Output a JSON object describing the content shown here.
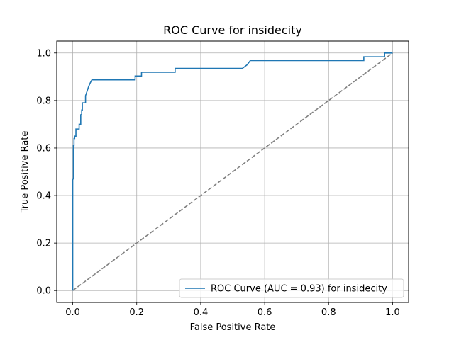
{
  "chart_data": {
    "type": "line",
    "title": "ROC Curve for insidecity",
    "xlabel": "False Positive Rate",
    "ylabel": "True Positive Rate",
    "xlim": [
      -0.05,
      1.05
    ],
    "ylim": [
      -0.05,
      1.05
    ],
    "xticks": [
      "0.0",
      "0.2",
      "0.4",
      "0.6",
      "0.8",
      "1.0"
    ],
    "yticks": [
      "0.0",
      "0.2",
      "0.4",
      "0.6",
      "0.8",
      "1.0"
    ],
    "grid": true,
    "legend_position": "lower-right",
    "series": [
      {
        "name": "ROC Curve (AUC = 0.93) for insidecity",
        "color": "#1f77b4",
        "style": "solid",
        "x": [
          0.0,
          0.0,
          0.002,
          0.002,
          0.004,
          0.004,
          0.006,
          0.006,
          0.01,
          0.01,
          0.02,
          0.02,
          0.025,
          0.025,
          0.028,
          0.028,
          0.03,
          0.03,
          0.04,
          0.04,
          0.045,
          0.05,
          0.055,
          0.06,
          0.195,
          0.195,
          0.215,
          0.215,
          0.32,
          0.32,
          0.53,
          0.545,
          0.555,
          0.555,
          0.91,
          0.91,
          0.975,
          0.975,
          1.0
        ],
        "y": [
          0.0,
          0.47,
          0.47,
          0.61,
          0.61,
          0.64,
          0.64,
          0.65,
          0.65,
          0.68,
          0.68,
          0.7,
          0.7,
          0.74,
          0.74,
          0.76,
          0.76,
          0.79,
          0.79,
          0.82,
          0.84,
          0.86,
          0.875,
          0.887,
          0.887,
          0.903,
          0.903,
          0.919,
          0.919,
          0.935,
          0.935,
          0.95,
          0.968,
          0.968,
          0.968,
          0.984,
          0.984,
          1.0,
          1.0
        ]
      },
      {
        "name": "",
        "color": "#808080",
        "style": "dashed",
        "x": [
          0.0,
          1.0
        ],
        "y": [
          0.0,
          1.0
        ]
      }
    ]
  }
}
